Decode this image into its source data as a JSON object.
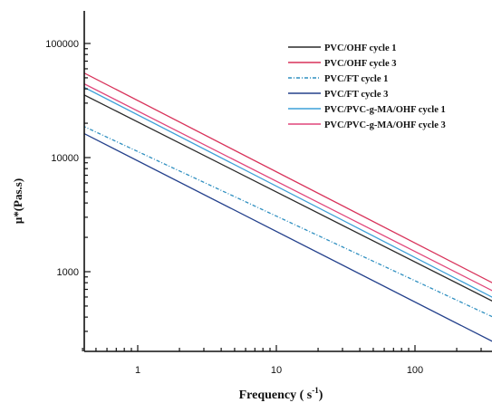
{
  "chart_data": {
    "type": "line",
    "xlabel": "Frequency ( s",
    "xlabel_sup": "-1",
    "xlabel_close": ")",
    "ylabel": "μ*(Pas.s)",
    "x_scale": "log",
    "y_scale": "log",
    "xlim": [
      0.4,
      400
    ],
    "ylim": [
      200,
      200000
    ],
    "x_ticks": [
      {
        "value": 1,
        "label": "1"
      },
      {
        "value": 10,
        "label": "10"
      },
      {
        "value": 100,
        "label": "100"
      }
    ],
    "y_ticks": [
      {
        "value": 1000,
        "label": "1000"
      },
      {
        "value": 10000,
        "label": "10000"
      },
      {
        "value": 100000,
        "label": "100000"
      }
    ],
    "grid": false,
    "legend_position": "top-right",
    "series": [
      {
        "name": "PVC/OHF cycle 1",
        "color": "#2a2a2a",
        "dash": "",
        "x": [
          0.4,
          400
        ],
        "y": [
          36000,
          520
        ]
      },
      {
        "name": "PVC/OHF cycle 3",
        "color": "#d8325a",
        "dash": "",
        "x": [
          0.4,
          400
        ],
        "y": [
          56000,
          750
        ]
      },
      {
        "name": "PVC/FT cycle 1",
        "color": "#2f8fc0",
        "dash": "4,2,1,2",
        "x": [
          0.4,
          400
        ],
        "y": [
          19000,
          380
        ]
      },
      {
        "name": "PVC/FT cycle 3",
        "color": "#24418c",
        "dash": "",
        "x": [
          0.4,
          400
        ],
        "y": [
          16500,
          230
        ]
      },
      {
        "name": "PVC/PVC-g-MA/OHF cycle 1",
        "color": "#3da0d8",
        "dash": "",
        "x": [
          0.4,
          400
        ],
        "y": [
          42000,
          560
        ]
      },
      {
        "name": "PVC/PVC-g-MA/OHF cycle 3",
        "color": "#e0457a",
        "dash": "",
        "x": [
          0.4,
          400
        ],
        "y": [
          45000,
          640
        ]
      }
    ],
    "legend_labels": [
      "PVC/OHF  cycle 1",
      "PVC/OHF  cycle 3",
      "PVC/FT cycle 1",
      "PVC/FT cycle 3",
      "PVC/PVC-g-MA/OHF  cycle 1",
      "PVC/PVC-g-MA/OHF  cycle 3"
    ]
  }
}
